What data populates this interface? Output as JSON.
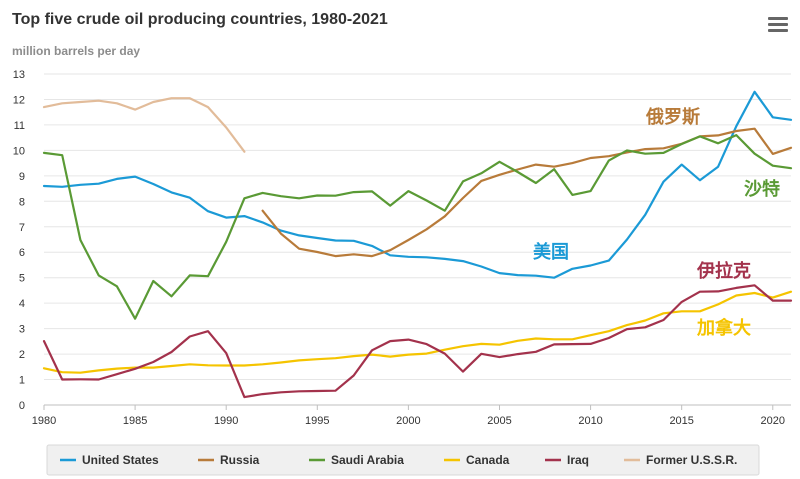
{
  "chart_data": {
    "type": "line",
    "title": "Top five crude oil producing countries, 1980-2021",
    "ylabel": "million barrels per day",
    "xlabel": "",
    "xlim": [
      1980,
      2021
    ],
    "ylim": [
      0,
      13
    ],
    "x_ticks": [
      1980,
      1985,
      1990,
      1995,
      2000,
      2005,
      2010,
      2015,
      2020
    ],
    "y_ticks": [
      0,
      1,
      2,
      3,
      4,
      5,
      6,
      7,
      8,
      9,
      10,
      11,
      12,
      13
    ],
    "grid": true,
    "legend_position": "bottom",
    "series": [
      {
        "name": "United States",
        "color": "#1b9ad6",
        "x": [
          1980,
          1981,
          1982,
          1983,
          1984,
          1985,
          1986,
          1987,
          1988,
          1989,
          1990,
          1991,
          1992,
          1993,
          1994,
          1995,
          1996,
          1997,
          1998,
          1999,
          2000,
          2001,
          2002,
          2003,
          2004,
          2005,
          2006,
          2007,
          2008,
          2009,
          2010,
          2011,
          2012,
          2013,
          2014,
          2015,
          2016,
          2017,
          2018,
          2019,
          2020,
          2021
        ],
        "values": [
          8.6,
          8.57,
          8.65,
          8.69,
          8.88,
          8.97,
          8.68,
          8.35,
          8.14,
          7.61,
          7.36,
          7.42,
          7.17,
          6.85,
          6.66,
          6.56,
          6.46,
          6.45,
          6.25,
          5.88,
          5.82,
          5.8,
          5.74,
          5.65,
          5.44,
          5.18,
          5.1,
          5.08,
          5.0,
          5.35,
          5.48,
          5.67,
          6.5,
          7.47,
          8.77,
          9.44,
          8.83,
          9.36,
          10.95,
          12.3,
          11.3,
          11.2
        ]
      },
      {
        "name": "Russia",
        "color": "#b87b3a",
        "x": [
          1992,
          1993,
          1994,
          1995,
          1996,
          1997,
          1998,
          1999,
          2000,
          2001,
          2002,
          2003,
          2004,
          2005,
          2006,
          2007,
          2008,
          2009,
          2010,
          2011,
          2012,
          2013,
          2014,
          2015,
          2016,
          2017,
          2018,
          2019,
          2020,
          2021
        ],
        "values": [
          7.63,
          6.73,
          6.14,
          6.01,
          5.85,
          5.92,
          5.85,
          6.08,
          6.48,
          6.9,
          7.41,
          8.13,
          8.8,
          9.04,
          9.25,
          9.44,
          9.36,
          9.5,
          9.7,
          9.77,
          9.92,
          10.05,
          10.08,
          10.26,
          10.55,
          10.59,
          10.76,
          10.85,
          9.86,
          10.1
        ]
      },
      {
        "name": "Saudi Arabia",
        "color": "#5a9a35",
        "x": [
          1980,
          1981,
          1982,
          1983,
          1984,
          1985,
          1986,
          1987,
          1988,
          1989,
          1990,
          1991,
          1992,
          1993,
          1994,
          1995,
          1996,
          1997,
          1998,
          1999,
          2000,
          2001,
          2002,
          2003,
          2004,
          2005,
          2006,
          2007,
          2008,
          2009,
          2010,
          2011,
          2012,
          2013,
          2014,
          2015,
          2016,
          2017,
          2018,
          2019,
          2020,
          2021
        ],
        "values": [
          9.9,
          9.81,
          6.48,
          5.09,
          4.66,
          3.39,
          4.87,
          4.27,
          5.09,
          5.06,
          6.41,
          8.12,
          8.33,
          8.2,
          8.12,
          8.23,
          8.22,
          8.36,
          8.39,
          7.83,
          8.4,
          8.03,
          7.63,
          8.78,
          9.1,
          9.55,
          9.15,
          8.72,
          9.26,
          8.25,
          8.4,
          9.6,
          10.0,
          9.87,
          9.9,
          10.25,
          10.55,
          10.28,
          10.6,
          9.87,
          9.4,
          9.3
        ]
      },
      {
        "name": "Canada",
        "color": "#f5c400",
        "x": [
          1980,
          1981,
          1982,
          1983,
          1984,
          1985,
          1986,
          1987,
          1988,
          1989,
          1990,
          1991,
          1992,
          1993,
          1994,
          1995,
          1996,
          1997,
          1998,
          1999,
          2000,
          2001,
          2002,
          2003,
          2004,
          2005,
          2006,
          2007,
          2008,
          2009,
          2010,
          2011,
          2012,
          2013,
          2014,
          2015,
          2016,
          2017,
          2018,
          2019,
          2020,
          2021
        ],
        "values": [
          1.44,
          1.29,
          1.27,
          1.36,
          1.43,
          1.47,
          1.47,
          1.53,
          1.6,
          1.56,
          1.55,
          1.55,
          1.6,
          1.67,
          1.75,
          1.8,
          1.84,
          1.92,
          1.98,
          1.9,
          1.98,
          2.02,
          2.17,
          2.31,
          2.4,
          2.37,
          2.52,
          2.61,
          2.58,
          2.58,
          2.74,
          2.9,
          3.14,
          3.32,
          3.6,
          3.68,
          3.68,
          3.95,
          4.3,
          4.4,
          4.22,
          4.45
        ]
      },
      {
        "name": "Iraq",
        "color": "#a3324c",
        "x": [
          1980,
          1981,
          1982,
          1983,
          1984,
          1985,
          1986,
          1987,
          1988,
          1989,
          1990,
          1991,
          1992,
          1993,
          1994,
          1995,
          1996,
          1997,
          1998,
          1999,
          2000,
          2001,
          2002,
          2003,
          2004,
          2005,
          2006,
          2007,
          2008,
          2009,
          2010,
          2011,
          2012,
          2013,
          2014,
          2015,
          2016,
          2017,
          2018,
          2019,
          2020,
          2021
        ],
        "values": [
          2.51,
          1.0,
          1.01,
          1.0,
          1.21,
          1.42,
          1.69,
          2.08,
          2.69,
          2.9,
          2.04,
          0.31,
          0.43,
          0.5,
          0.54,
          0.55,
          0.56,
          1.16,
          2.15,
          2.51,
          2.57,
          2.39,
          2.02,
          1.31,
          2.01,
          1.88,
          2.0,
          2.09,
          2.38,
          2.39,
          2.4,
          2.63,
          2.98,
          3.05,
          3.34,
          4.05,
          4.45,
          4.46,
          4.6,
          4.7,
          4.1,
          4.1
        ]
      },
      {
        "name": "Former U.S.S.R.",
        "color": "#e2bc9a",
        "x": [
          1980,
          1981,
          1982,
          1983,
          1984,
          1985,
          1986,
          1987,
          1988,
          1989,
          1990,
          1991
        ],
        "values": [
          11.7,
          11.85,
          11.9,
          11.95,
          11.85,
          11.6,
          11.9,
          12.05,
          12.05,
          11.7,
          10.9,
          9.95
        ]
      }
    ],
    "annotations": [
      {
        "text": "俄罗斯",
        "series": "Russia"
      },
      {
        "text": "沙特",
        "series": "Saudi Arabia"
      },
      {
        "text": "美国",
        "series": "United States"
      },
      {
        "text": "伊拉克",
        "series": "Iraq"
      },
      {
        "text": "加拿大",
        "series": "Canada"
      }
    ]
  },
  "menu": {
    "icon": "hamburger-menu-icon"
  }
}
